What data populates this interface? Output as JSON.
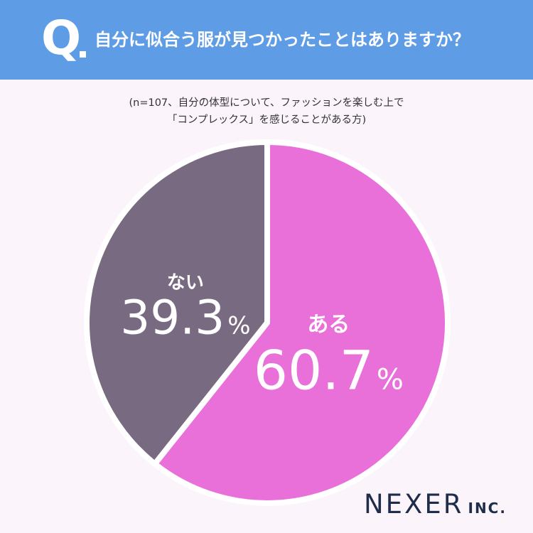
{
  "header": {
    "q_mark": "Q",
    "question": "自分に似合う服が見つかったことはありますか？"
  },
  "subtitle": {
    "line1": "(n=107、自分の体型について、ファッションを楽しむ上で",
    "line2": "「コンプレックス」を感じることがある方)"
  },
  "chart_data": {
    "type": "pie",
    "title": "自分に似合う服が見つかったことはありますか？",
    "slices": [
      {
        "label": "ある",
        "value": 60.7,
        "display": "60.7",
        "color": "#e96fd9"
      },
      {
        "label": "ない",
        "value": 39.3,
        "display": "39.3",
        "color": "#786a80"
      }
    ],
    "unit": "%",
    "start_angle": "12 o'clock",
    "direction": "clockwise"
  },
  "logo": {
    "main": "NEXER",
    "sub": "INC."
  }
}
